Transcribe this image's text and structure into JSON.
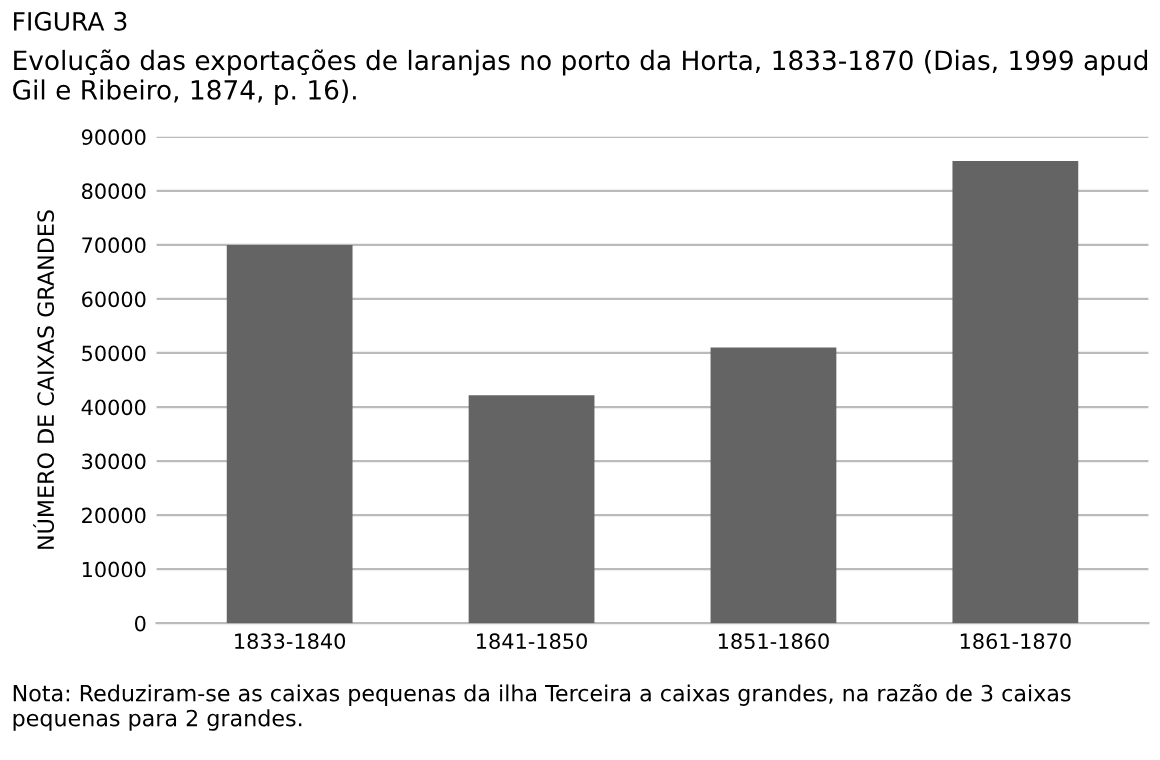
{
  "chart_data": {
    "type": "bar",
    "title": "FIGURA 3",
    "subtitle": "Evolução das exportações de laranjas no porto da Horta, 1833-1870 (Dias, 1999 apud Gil e Ribeiro, 1874, p. 16).",
    "ylabel": "NÚMERO DE CAIXAS GRANDES",
    "categories": [
      "1833-1840",
      "1841-1850",
      "1851-1860",
      "1861-1870"
    ],
    "values": [
      70000,
      42200,
      51000,
      85500
    ],
    "color": "#646464",
    "ylim": [
      0,
      90000
    ],
    "yticks": [
      0,
      10000,
      20000,
      30000,
      40000,
      50000,
      60000,
      70000,
      80000,
      90000
    ],
    "grid": "y",
    "annotations": [
      "Nota: Reduziram-se as caixas pequenas da ilha Terceira a caixas grandes, na razão de 3 caixas pequenas para 2 grandes."
    ]
  }
}
